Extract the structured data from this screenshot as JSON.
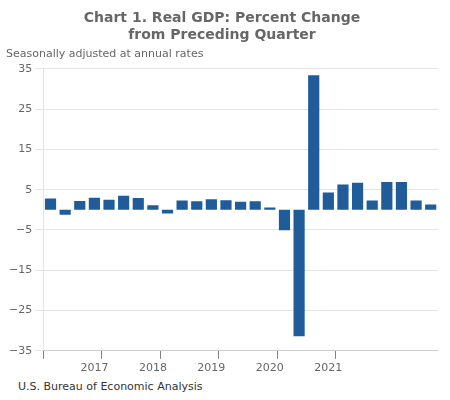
{
  "chart_data": {
    "type": "bar",
    "title": "Chart 1. Real GDP: Percent Change\nfrom Preceding Quarter",
    "subtitle": "Seasonally adjusted at annual rates",
    "footer": "U.S. Bureau of Economic Analysis",
    "categories": [
      null,
      null,
      null,
      "2017",
      null,
      null,
      null,
      "2018",
      null,
      null,
      null,
      "2019",
      null,
      null,
      null,
      "2020",
      null,
      null,
      null,
      "2021",
      null,
      null,
      null,
      null,
      null,
      null,
      null
    ],
    "values": [
      2.8,
      -1.2,
      2.2,
      3.0,
      2.5,
      3.5,
      2.9,
      1.1,
      -0.9,
      2.3,
      2.1,
      2.6,
      2.4,
      2.0,
      2.1,
      0.6,
      -5.1,
      -31.4,
      33.4,
      4.3,
      6.3,
      6.7,
      2.3,
      6.9,
      6.9,
      2.3,
      1.3
    ],
    "color": "#1F5C99",
    "ylim": [
      -35,
      35
    ],
    "yticks": [
      {
        "value": -35,
        "label": "−35"
      },
      {
        "value": -25,
        "label": "−25"
      },
      {
        "value": -15,
        "label": "−15"
      },
      {
        "value": -5,
        "label": "−5"
      },
      5,
      15,
      25,
      35
    ],
    "grid": true
  }
}
